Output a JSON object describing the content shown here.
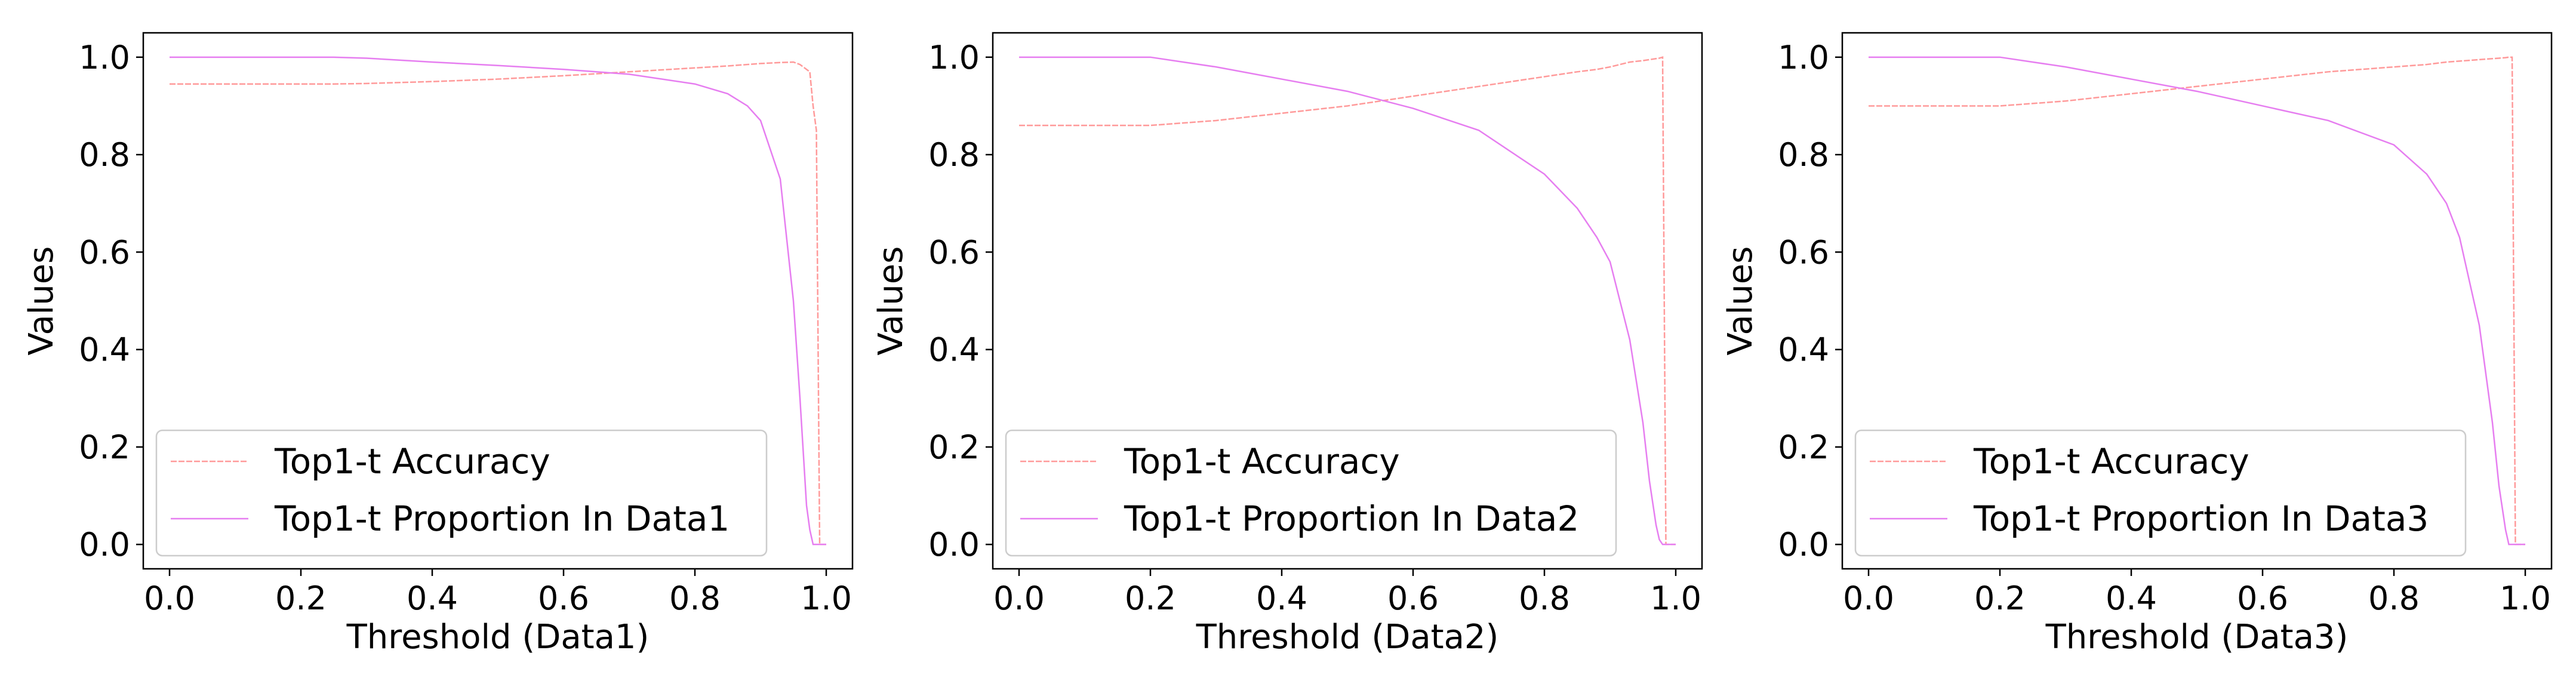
{
  "chart_data": [
    {
      "type": "line",
      "xlabel": "Threshold (Data1)",
      "ylabel": "Values",
      "x": [
        0,
        0.1,
        0.2,
        0.25,
        0.3,
        0.4,
        0.5,
        0.6,
        0.7,
        0.8,
        0.85,
        0.88,
        0.9,
        0.93,
        0.95,
        0.96,
        0.97,
        0.975,
        0.98,
        0.985,
        0.99,
        1.0
      ],
      "series": [
        {
          "name": "Top1-t Accuracy",
          "color": "#ff9a9a",
          "values": [
            0.945,
            0.945,
            0.945,
            0.945,
            0.946,
            0.95,
            0.955,
            0.962,
            0.97,
            0.978,
            0.982,
            0.985,
            0.987,
            0.989,
            0.99,
            0.985,
            0.975,
            0.97,
            0.9,
            0.85,
            0,
            0
          ]
        },
        {
          "name": "Top1-t Proportion In Data1",
          "color": "#e67ef0",
          "values": [
            1,
            1,
            1,
            1,
            0.998,
            0.99,
            0.983,
            0.975,
            0.965,
            0.945,
            0.925,
            0.9,
            0.87,
            0.75,
            0.5,
            0.3,
            0.08,
            0.03,
            0,
            0,
            0,
            0
          ]
        }
      ],
      "xlim": [
        -0.04,
        1.04
      ],
      "ylim": [
        -0.05,
        1.05
      ],
      "xticks": [
        {
          "value": 0,
          "label": "0.0"
        },
        {
          "value": 0.2,
          "label": "0.2"
        },
        {
          "value": 0.4,
          "label": "0.4"
        },
        {
          "value": 0.6,
          "label": "0.6"
        },
        {
          "value": 0.8,
          "label": "0.8"
        },
        {
          "value": 1,
          "label": "1.0"
        }
      ],
      "yticks": [
        {
          "value": 0,
          "label": "0.0"
        },
        {
          "value": 0.2,
          "label": "0.2"
        },
        {
          "value": 0.4,
          "label": "0.4"
        },
        {
          "value": 0.6,
          "label": "0.6"
        },
        {
          "value": 0.8,
          "label": "0.8"
        },
        {
          "value": 1,
          "label": "1.0"
        }
      ],
      "legend": "lower left"
    },
    {
      "type": "line",
      "xlabel": "Threshold (Data2)",
      "ylabel": "Values",
      "x": [
        0,
        0.1,
        0.2,
        0.25,
        0.3,
        0.4,
        0.5,
        0.6,
        0.7,
        0.8,
        0.85,
        0.88,
        0.9,
        0.93,
        0.95,
        0.96,
        0.97,
        0.975,
        0.98,
        0.985,
        0.99,
        1.0
      ],
      "series": [
        {
          "name": "Top1-t Accuracy",
          "color": "#ff9a9a",
          "values": [
            0.86,
            0.86,
            0.86,
            0.865,
            0.87,
            0.885,
            0.9,
            0.92,
            0.94,
            0.96,
            0.97,
            0.975,
            0.98,
            0.99,
            0.993,
            0.995,
            0.997,
            0.998,
            1.0,
            0,
            0,
            0
          ]
        },
        {
          "name": "Top1-t Proportion In Data2",
          "color": "#e67ef0",
          "values": [
            1,
            1,
            1,
            0.99,
            0.98,
            0.955,
            0.93,
            0.895,
            0.85,
            0.76,
            0.69,
            0.63,
            0.58,
            0.42,
            0.25,
            0.13,
            0.04,
            0.01,
            0,
            0,
            0,
            0
          ]
        }
      ],
      "xlim": [
        -0.04,
        1.04
      ],
      "ylim": [
        -0.05,
        1.05
      ],
      "xticks": [
        {
          "value": 0,
          "label": "0.0"
        },
        {
          "value": 0.2,
          "label": "0.2"
        },
        {
          "value": 0.4,
          "label": "0.4"
        },
        {
          "value": 0.6,
          "label": "0.6"
        },
        {
          "value": 0.8,
          "label": "0.8"
        },
        {
          "value": 1,
          "label": "1.0"
        }
      ],
      "yticks": [
        {
          "value": 0,
          "label": "0.0"
        },
        {
          "value": 0.2,
          "label": "0.2"
        },
        {
          "value": 0.4,
          "label": "0.4"
        },
        {
          "value": 0.6,
          "label": "0.6"
        },
        {
          "value": 0.8,
          "label": "0.8"
        },
        {
          "value": 1,
          "label": "1.0"
        }
      ],
      "legend": "lower left"
    },
    {
      "type": "line",
      "xlabel": "Threshold (Data3)",
      "ylabel": "Values",
      "x": [
        0,
        0.1,
        0.2,
        0.25,
        0.3,
        0.4,
        0.5,
        0.6,
        0.7,
        0.8,
        0.85,
        0.88,
        0.9,
        0.93,
        0.95,
        0.96,
        0.97,
        0.975,
        0.98,
        0.985,
        0.99,
        1.0
      ],
      "series": [
        {
          "name": "Top1-t Accuracy",
          "color": "#ff9a9a",
          "values": [
            0.9,
            0.9,
            0.9,
            0.905,
            0.91,
            0.925,
            0.94,
            0.955,
            0.97,
            0.98,
            0.985,
            0.99,
            0.992,
            0.995,
            0.997,
            0.998,
            0.999,
            1.0,
            1.0,
            0,
            0,
            0
          ]
        },
        {
          "name": "Top1-t Proportion In Data3",
          "color": "#e67ef0",
          "values": [
            1,
            1,
            1,
            0.99,
            0.98,
            0.955,
            0.93,
            0.9,
            0.87,
            0.82,
            0.76,
            0.7,
            0.63,
            0.45,
            0.25,
            0.12,
            0.03,
            0,
            0,
            0,
            0,
            0
          ]
        }
      ],
      "xlim": [
        -0.04,
        1.04
      ],
      "ylim": [
        -0.05,
        1.05
      ],
      "xticks": [
        {
          "value": 0,
          "label": "0.0"
        },
        {
          "value": 0.2,
          "label": "0.2"
        },
        {
          "value": 0.4,
          "label": "0.4"
        },
        {
          "value": 0.6,
          "label": "0.6"
        },
        {
          "value": 0.8,
          "label": "0.8"
        },
        {
          "value": 1,
          "label": "1.0"
        }
      ],
      "yticks": [
        {
          "value": 0,
          "label": "0.0"
        },
        {
          "value": 0.2,
          "label": "0.2"
        },
        {
          "value": 0.4,
          "label": "0.4"
        },
        {
          "value": 0.6,
          "label": "0.6"
        },
        {
          "value": 0.8,
          "label": "0.8"
        },
        {
          "value": 1,
          "label": "1.0"
        }
      ],
      "legend": "lower left"
    }
  ]
}
